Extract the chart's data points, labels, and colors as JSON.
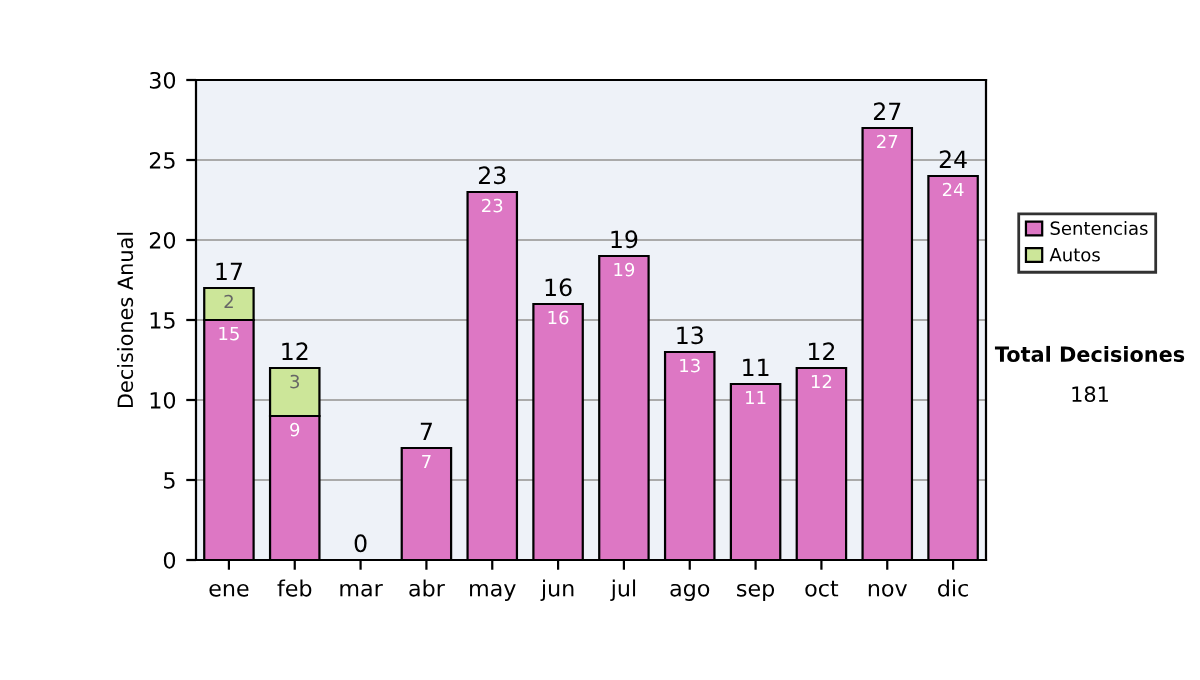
{
  "chart_data": {
    "type": "bar",
    "stacked": true,
    "ylabel": "Decisiones Anual",
    "categories": [
      "ene",
      "feb",
      "mar",
      "abr",
      "may",
      "jun",
      "jul",
      "ago",
      "sep",
      "oct",
      "nov",
      "dic"
    ],
    "series": [
      {
        "name": "Sentencias",
        "color": "#dd77c4",
        "values": [
          15,
          9,
          0,
          7,
          23,
          16,
          19,
          13,
          11,
          12,
          27,
          24
        ],
        "value_labels": [
          "15",
          "9",
          null,
          "7",
          "23",
          "16",
          "19",
          "13",
          "11",
          "12",
          "27",
          "24"
        ]
      },
      {
        "name": "Autos",
        "color": "#cce699",
        "values": [
          2,
          3,
          0,
          0,
          0,
          0,
          0,
          0,
          0,
          0,
          0,
          0
        ],
        "value_labels": [
          "2",
          "3",
          null,
          null,
          null,
          null,
          null,
          null,
          null,
          null,
          null,
          null
        ]
      }
    ],
    "totals": [
      "17",
      "12",
      "0",
      "7",
      "23",
      "16",
      "19",
      "13",
      "11",
      "12",
      "27",
      "24"
    ],
    "ylim": [
      0,
      30
    ],
    "yticks": [
      0,
      5,
      10,
      15,
      20,
      25,
      30
    ],
    "grid": "y",
    "legend": "right",
    "annotations": [
      "Total Decisiones",
      "181"
    ]
  }
}
